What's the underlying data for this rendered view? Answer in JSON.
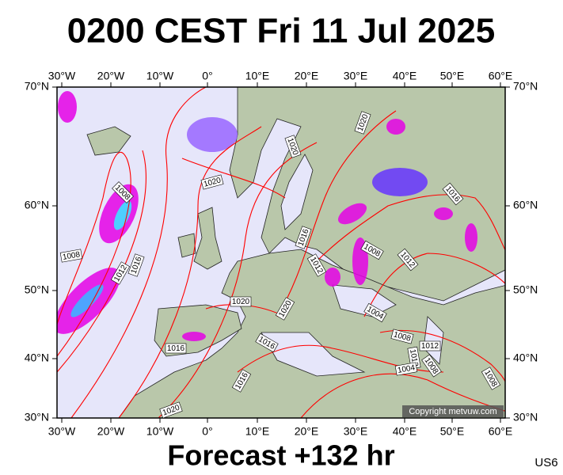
{
  "header": {
    "title": "0200 CEST Fri 11 Jul 2025"
  },
  "footer": {
    "forecast": "Forecast +132 hr",
    "model": "US6"
  },
  "copyright": "Copyright metvuw.com",
  "axes": {
    "longitudes": [
      "30°W",
      "20°W",
      "10°W",
      "0°",
      "10°E",
      "20°E",
      "30°E",
      "40°E",
      "50°E",
      "60°E"
    ],
    "latitudes": [
      "70°N",
      "60°N",
      "50°N",
      "40°N",
      "30°N"
    ]
  },
  "isobar_labels": [
    "1008",
    "1020",
    "1020",
    "1020",
    "1016",
    "1008",
    "1012",
    "1016",
    "1016",
    "1012",
    "1008",
    "1012",
    "1020",
    "1020",
    "1004",
    "1016",
    "1016",
    "1008",
    "1012",
    "1012",
    "1004",
    "1008",
    "1016",
    "1020",
    "1008"
  ]
}
